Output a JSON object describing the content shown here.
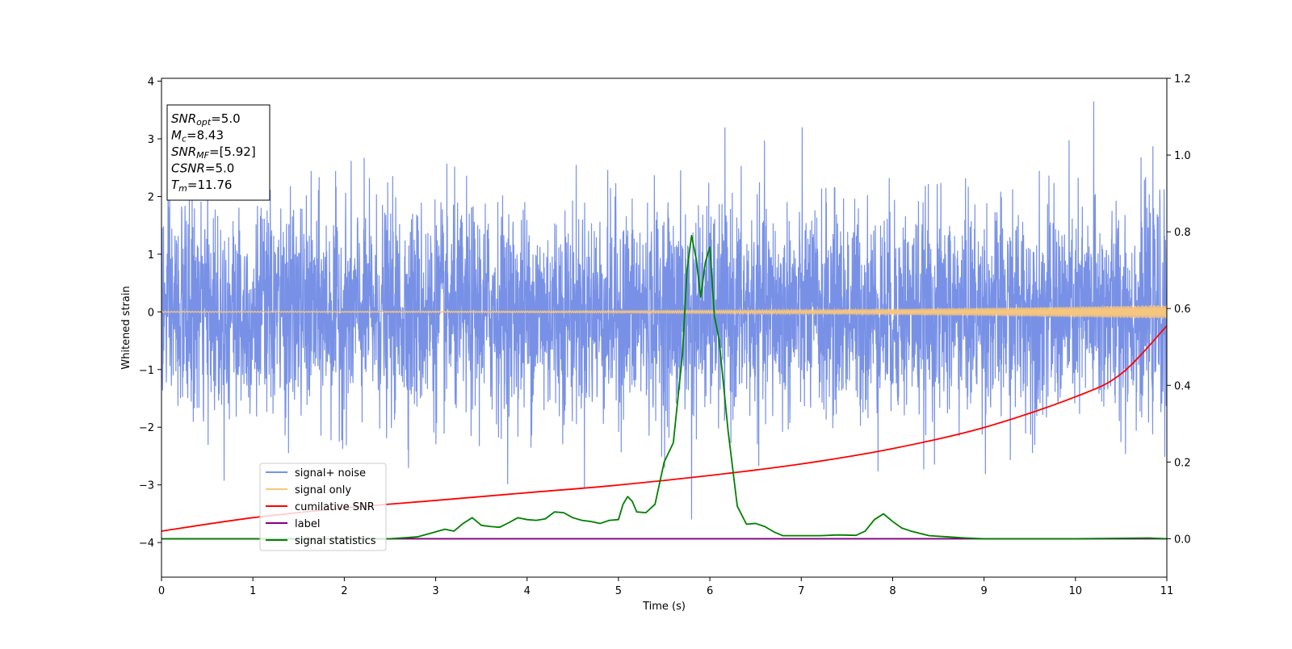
{
  "chart_data": {
    "type": "line",
    "xlabel": "Time (s)",
    "ylabel": "Whitened strain",
    "xlim": [
      0,
      11
    ],
    "ylim": [
      -4.6,
      4.05
    ],
    "y2lim": [
      -0.1,
      1.2
    ],
    "x_ticks": [
      0,
      1,
      2,
      3,
      4,
      5,
      6,
      7,
      8,
      9,
      10,
      11
    ],
    "y_ticks": [
      -4,
      -3,
      -2,
      -1,
      0,
      1,
      2,
      3,
      4
    ],
    "y_tick_labels": [
      "−4",
      "−3",
      "−2",
      "−1",
      "0",
      "1",
      "2",
      "3",
      "4"
    ],
    "y2_ticks": [
      0.0,
      0.2,
      0.4,
      0.6,
      0.8,
      1.0,
      1.2
    ],
    "y2_tick_labels": [
      "0.0",
      "0.2",
      "0.4",
      "0.6",
      "0.8",
      "1.0",
      "1.2"
    ],
    "legend_position": "lower-left",
    "grid": false,
    "info_box": [
      {
        "main": "SNR",
        "sub": "opt",
        "value": "=5.0"
      },
      {
        "main": "M",
        "sub": "c",
        "value": "=8.43"
      },
      {
        "main": "SNR",
        "sub": "MF",
        "value": "=[5.92]"
      },
      {
        "main": "CSNR",
        "sub": "",
        "value": "=5.0"
      },
      {
        "main": "T",
        "sub": "m",
        "value": "=11.76"
      }
    ],
    "series": [
      {
        "name": "signal+ noise",
        "axis": "left",
        "color": "#7891e6",
        "kind": "noise",
        "sigma": 0.9,
        "max_value": 3.65,
        "max_at": 10.2,
        "min_value": -3.6,
        "min_at": 5.8
      },
      {
        "name": "signal only",
        "axis": "left",
        "color": "#f7c67e",
        "kind": "chirp",
        "amplitude_start": 0.01,
        "amplitude_end": 0.12
      },
      {
        "name": "cumilative SNR",
        "axis": "right",
        "color": "#ff0000",
        "x": [
          0,
          1,
          2,
          3,
          4,
          5,
          6,
          7,
          8,
          9,
          10,
          10.5,
          11
        ],
        "y": [
          0.02,
          0.055,
          0.08,
          0.1,
          0.12,
          0.14,
          0.165,
          0.195,
          0.235,
          0.29,
          0.37,
          0.43,
          0.555
        ]
      },
      {
        "name": "label",
        "axis": "right",
        "color": "#800080",
        "x": [
          0,
          11
        ],
        "y": [
          0.0,
          0.0
        ]
      },
      {
        "name": "signal statistics",
        "axis": "right",
        "color": "#008000",
        "x": [
          0,
          2.5,
          2.8,
          3.0,
          3.1,
          3.2,
          3.3,
          3.4,
          3.5,
          3.6,
          3.7,
          3.8,
          3.9,
          4.0,
          4.1,
          4.2,
          4.3,
          4.4,
          4.5,
          4.6,
          4.7,
          4.8,
          4.9,
          5.0,
          5.05,
          5.1,
          5.15,
          5.2,
          5.3,
          5.4,
          5.5,
          5.6,
          5.7,
          5.75,
          5.8,
          5.85,
          5.9,
          5.95,
          6.0,
          6.05,
          6.1,
          6.15,
          6.2,
          6.3,
          6.4,
          6.5,
          6.6,
          6.7,
          6.8,
          7.0,
          7.2,
          7.4,
          7.6,
          7.7,
          7.8,
          7.9,
          8.0,
          8.1,
          8.2,
          8.4,
          8.6,
          8.8,
          9.0,
          10.0,
          10.8,
          11.0
        ],
        "y": [
          0.0,
          0.0,
          0.005,
          0.018,
          0.025,
          0.02,
          0.04,
          0.055,
          0.035,
          0.032,
          0.03,
          0.042,
          0.055,
          0.05,
          0.048,
          0.052,
          0.07,
          0.068,
          0.055,
          0.048,
          0.045,
          0.04,
          0.048,
          0.05,
          0.09,
          0.11,
          0.098,
          0.07,
          0.068,
          0.09,
          0.2,
          0.25,
          0.48,
          0.7,
          0.79,
          0.73,
          0.63,
          0.72,
          0.76,
          0.58,
          0.52,
          0.4,
          0.28,
          0.085,
          0.038,
          0.04,
          0.032,
          0.018,
          0.008,
          0.008,
          0.008,
          0.01,
          0.009,
          0.02,
          0.05,
          0.065,
          0.045,
          0.028,
          0.02,
          0.008,
          0.005,
          0.002,
          0.0,
          0.0,
          0.002,
          0.0
        ]
      }
    ]
  }
}
